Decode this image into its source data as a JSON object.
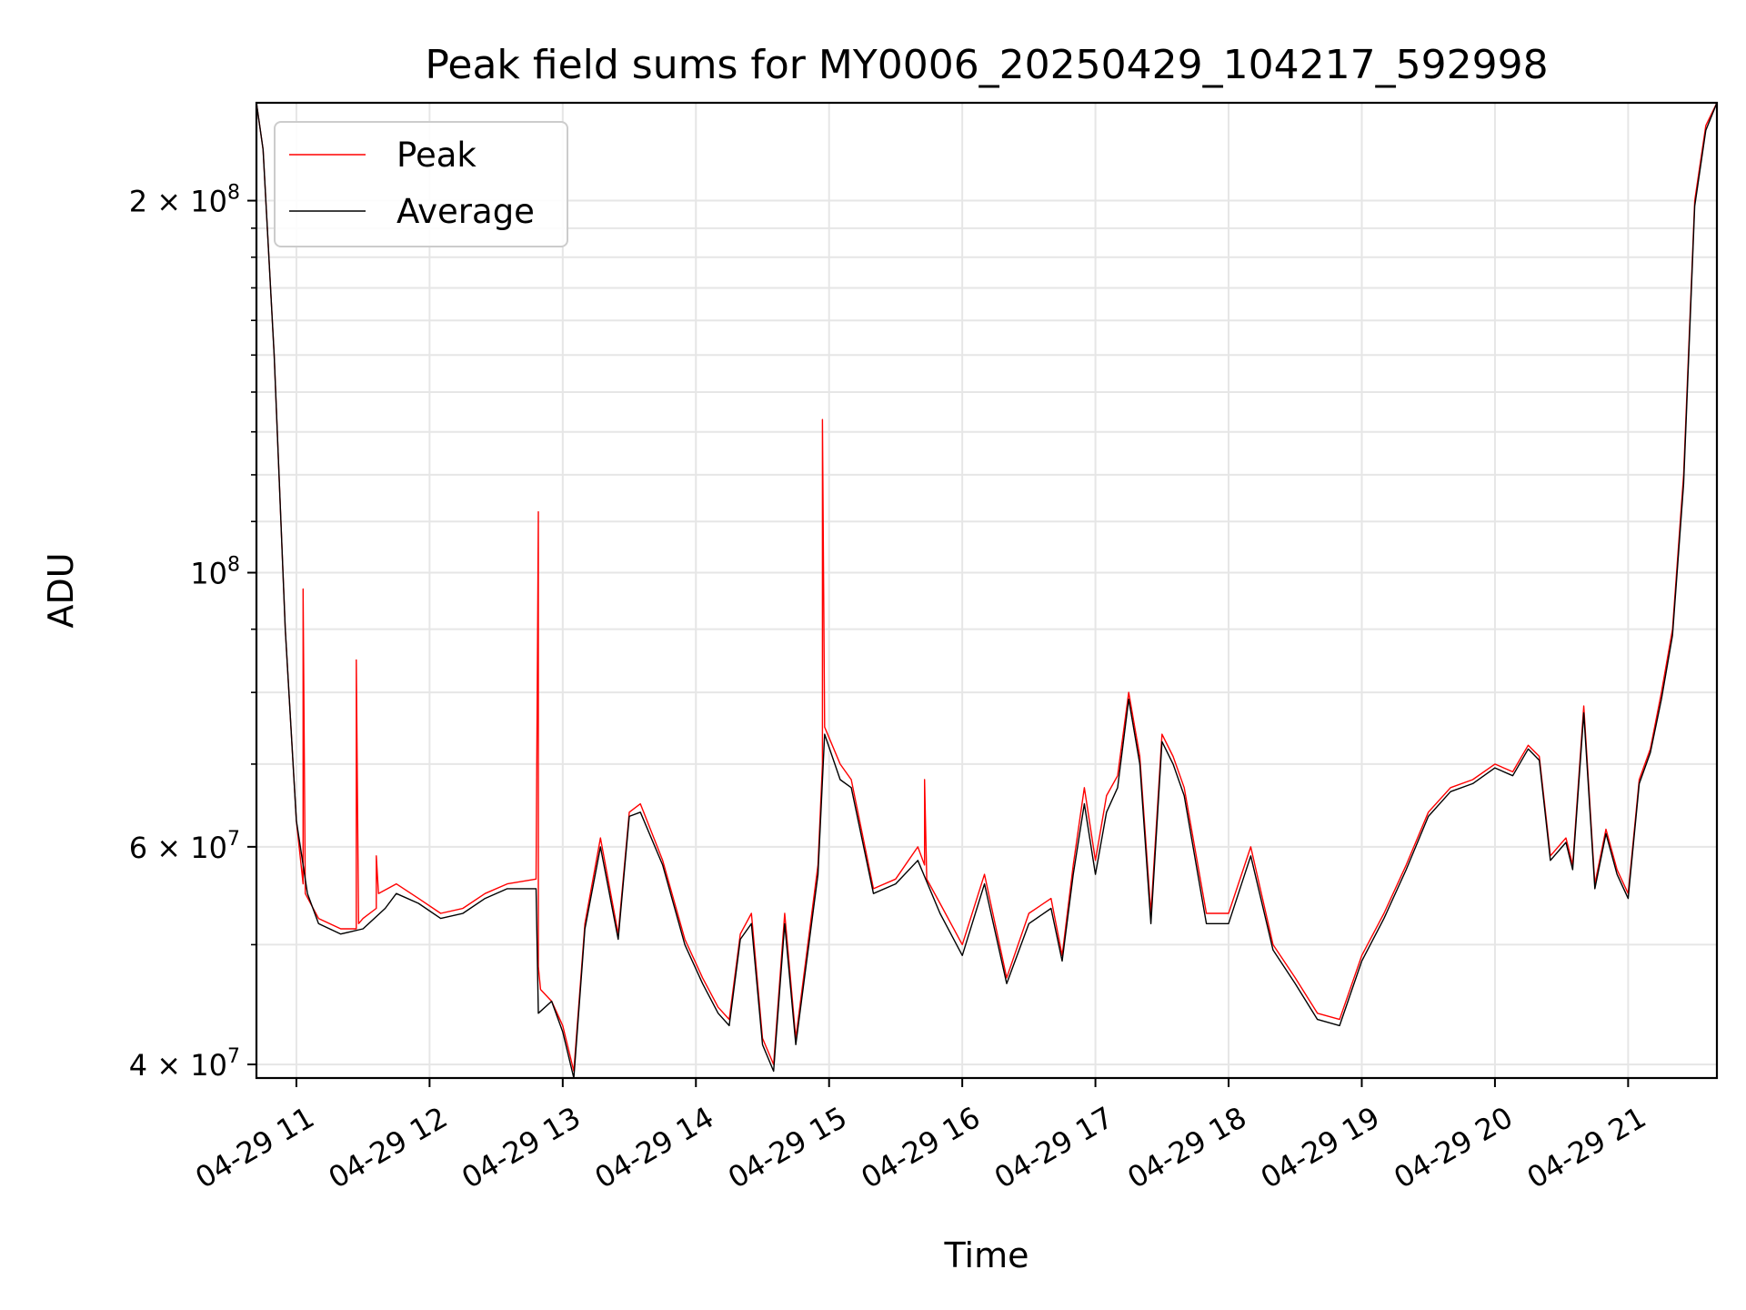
{
  "chart_data": {
    "type": "line",
    "title": "Peak field sums for MY0006_20250429_104217_592998",
    "xlabel": "Time",
    "ylabel": "ADU",
    "x_ticks": [
      "04-29 11",
      "04-29 12",
      "04-29 13",
      "04-29 14",
      "04-29 15",
      "04-29 16",
      "04-29 17",
      "04-29 18",
      "04-29 19",
      "04-29 20",
      "04-29 21"
    ],
    "y_ticks": [
      {
        "value": 40000000,
        "label": "4 × 10^7"
      },
      {
        "value": 60000000,
        "label": "6 × 10^7"
      },
      {
        "value": 100000000,
        "label": "10^8"
      },
      {
        "value": 200000000,
        "label": "2 × 10^8"
      }
    ],
    "xlim": [
      "2025-04-29 10:42",
      "2025-04-29 21:40"
    ],
    "ylim": [
      39000000,
      240000000
    ],
    "yscale": "log",
    "grid": true,
    "legend_position": "top-left",
    "series": [
      {
        "name": "Peak",
        "color": "#ff0000",
        "x": [
          "2025-04-29 10:42",
          "2025-04-29 10:45",
          "2025-04-29 10:50",
          "2025-04-29 10:55",
          "2025-04-29 11:00",
          "2025-04-29 11:03",
          "2025-04-29 11:03",
          "2025-04-29 11:04",
          "2025-04-29 11:10",
          "2025-04-29 11:20",
          "2025-04-29 11:27",
          "2025-04-29 11:27",
          "2025-04-29 11:28",
          "2025-04-29 11:30",
          "2025-04-29 11:36",
          "2025-04-29 11:36",
          "2025-04-29 11:37",
          "2025-04-29 11:45",
          "2025-04-29 11:55",
          "2025-04-29 12:05",
          "2025-04-29 12:15",
          "2025-04-29 12:25",
          "2025-04-29 12:35",
          "2025-04-29 12:48",
          "2025-04-29 12:49",
          "2025-04-29 12:49",
          "2025-04-29 12:50",
          "2025-04-29 12:55",
          "2025-04-29 13:00",
          "2025-04-29 13:05",
          "2025-04-29 13:10",
          "2025-04-29 13:17",
          "2025-04-29 13:25",
          "2025-04-29 13:30",
          "2025-04-29 13:35",
          "2025-04-29 13:45",
          "2025-04-29 13:55",
          "2025-04-29 14:03",
          "2025-04-29 14:10",
          "2025-04-29 14:15",
          "2025-04-29 14:20",
          "2025-04-29 14:25",
          "2025-04-29 14:30",
          "2025-04-29 14:35",
          "2025-04-29 14:40",
          "2025-04-29 14:45",
          "2025-04-29 14:55",
          "2025-04-29 14:57",
          "2025-04-29 14:57",
          "2025-04-29 14:58",
          "2025-04-29 15:05",
          "2025-04-29 15:10",
          "2025-04-29 15:20",
          "2025-04-29 15:30",
          "2025-04-29 15:40",
          "2025-04-29 15:43",
          "2025-04-29 15:43",
          "2025-04-29 15:44",
          "2025-04-29 15:50",
          "2025-04-29 16:00",
          "2025-04-29 16:10",
          "2025-04-29 16:20",
          "2025-04-29 16:30",
          "2025-04-29 16:40",
          "2025-04-29 16:45",
          "2025-04-29 16:50",
          "2025-04-29 16:55",
          "2025-04-29 17:00",
          "2025-04-29 17:05",
          "2025-04-29 17:10",
          "2025-04-29 17:15",
          "2025-04-29 17:20",
          "2025-04-29 17:25",
          "2025-04-29 17:30",
          "2025-04-29 17:35",
          "2025-04-29 17:40",
          "2025-04-29 17:50",
          "2025-04-29 18:00",
          "2025-04-29 18:10",
          "2025-04-29 18:20",
          "2025-04-29 18:30",
          "2025-04-29 18:40",
          "2025-04-29 18:50",
          "2025-04-29 19:00",
          "2025-04-29 19:10",
          "2025-04-29 19:20",
          "2025-04-29 19:30",
          "2025-04-29 19:40",
          "2025-04-29 19:50",
          "2025-04-29 20:00",
          "2025-04-29 20:08",
          "2025-04-29 20:15",
          "2025-04-29 20:20",
          "2025-04-29 20:25",
          "2025-04-29 20:32",
          "2025-04-29 20:35",
          "2025-04-29 20:40",
          "2025-04-29 20:45",
          "2025-04-29 20:50",
          "2025-04-29 20:55",
          "2025-04-29 21:00",
          "2025-04-29 21:05",
          "2025-04-29 21:10",
          "2025-04-29 21:15",
          "2025-04-29 21:20",
          "2025-04-29 21:25",
          "2025-04-29 21:30",
          "2025-04-29 21:35",
          "2025-04-29 21:40"
        ],
        "y": [
          240000000,
          220000000,
          150000000,
          90000000,
          63000000,
          56000000,
          97000000,
          55000000,
          52500000,
          51500000,
          51500000,
          85000000,
          52000000,
          52500000,
          53500000,
          59000000,
          55000000,
          56000000,
          54500000,
          53000000,
          53500000,
          55000000,
          56000000,
          56500000,
          112000000,
          48000000,
          46000000,
          45000000,
          43000000,
          39500000,
          52000000,
          61000000,
          51000000,
          64000000,
          65000000,
          58500000,
          50500000,
          47000000,
          44500000,
          43500000,
          51000000,
          53000000,
          42000000,
          40000000,
          53000000,
          42000000,
          58000000,
          70000000,
          133000000,
          75000000,
          70000000,
          68000000,
          55500000,
          56500000,
          60000000,
          58000000,
          68000000,
          56500000,
          54000000,
          50000000,
          57000000,
          47000000,
          53000000,
          54500000,
          49000000,
          58000000,
          67000000,
          58500000,
          66000000,
          68500000,
          80000000,
          71000000,
          53000000,
          74000000,
          71000000,
          67000000,
          53000000,
          53000000,
          60000000,
          50000000,
          47000000,
          44000000,
          43500000,
          49000000,
          53000000,
          58000000,
          64000000,
          67000000,
          68000000,
          70000000,
          69000000,
          72500000,
          71000000,
          59000000,
          61000000,
          58000000,
          78000000,
          56000000,
          62000000,
          57500000,
          55000000,
          68000000,
          72000000,
          80000000,
          90000000,
          120000000,
          200000000,
          230000000,
          240000000
        ]
      },
      {
        "name": "Average",
        "color": "#000000",
        "x": [
          "2025-04-29 10:42",
          "2025-04-29 10:45",
          "2025-04-29 10:50",
          "2025-04-29 10:55",
          "2025-04-29 11:00",
          "2025-04-29 11:05",
          "2025-04-29 11:10",
          "2025-04-29 11:20",
          "2025-04-29 11:30",
          "2025-04-29 11:40",
          "2025-04-29 11:45",
          "2025-04-29 11:55",
          "2025-04-29 12:05",
          "2025-04-29 12:15",
          "2025-04-29 12:25",
          "2025-04-29 12:35",
          "2025-04-29 12:48",
          "2025-04-29 12:49",
          "2025-04-29 12:55",
          "2025-04-29 13:00",
          "2025-04-29 13:05",
          "2025-04-29 13:10",
          "2025-04-29 13:17",
          "2025-04-29 13:25",
          "2025-04-29 13:30",
          "2025-04-29 13:35",
          "2025-04-29 13:45",
          "2025-04-29 13:55",
          "2025-04-29 14:03",
          "2025-04-29 14:10",
          "2025-04-29 14:15",
          "2025-04-29 14:20",
          "2025-04-29 14:25",
          "2025-04-29 14:30",
          "2025-04-29 14:35",
          "2025-04-29 14:40",
          "2025-04-29 14:45",
          "2025-04-29 14:55",
          "2025-04-29 14:58",
          "2025-04-29 15:05",
          "2025-04-29 15:10",
          "2025-04-29 15:20",
          "2025-04-29 15:30",
          "2025-04-29 15:40",
          "2025-04-29 15:50",
          "2025-04-29 16:00",
          "2025-04-29 16:10",
          "2025-04-29 16:20",
          "2025-04-29 16:30",
          "2025-04-29 16:40",
          "2025-04-29 16:45",
          "2025-04-29 16:50",
          "2025-04-29 16:55",
          "2025-04-29 17:00",
          "2025-04-29 17:05",
          "2025-04-29 17:10",
          "2025-04-29 17:15",
          "2025-04-29 17:20",
          "2025-04-29 17:25",
          "2025-04-29 17:30",
          "2025-04-29 17:35",
          "2025-04-29 17:40",
          "2025-04-29 17:50",
          "2025-04-29 18:00",
          "2025-04-29 18:10",
          "2025-04-29 18:20",
          "2025-04-29 18:30",
          "2025-04-29 18:40",
          "2025-04-29 18:50",
          "2025-04-29 19:00",
          "2025-04-29 19:10",
          "2025-04-29 19:20",
          "2025-04-29 19:30",
          "2025-04-29 19:40",
          "2025-04-29 19:50",
          "2025-04-29 20:00",
          "2025-04-29 20:08",
          "2025-04-29 20:15",
          "2025-04-29 20:20",
          "2025-04-29 20:25",
          "2025-04-29 20:32",
          "2025-04-29 20:35",
          "2025-04-29 20:40",
          "2025-04-29 20:45",
          "2025-04-29 20:50",
          "2025-04-29 20:55",
          "2025-04-29 21:00",
          "2025-04-29 21:05",
          "2025-04-29 21:10",
          "2025-04-29 21:15",
          "2025-04-29 21:20",
          "2025-04-29 21:25",
          "2025-04-29 21:30",
          "2025-04-29 21:35",
          "2025-04-29 21:40"
        ],
        "y": [
          240000000,
          220000000,
          150000000,
          90000000,
          63000000,
          55000000,
          52000000,
          51000000,
          51500000,
          53500000,
          55000000,
          54000000,
          52500000,
          53000000,
          54500000,
          55500000,
          55500000,
          44000000,
          45000000,
          42500000,
          39000000,
          51500000,
          60000000,
          50500000,
          63500000,
          64000000,
          58000000,
          50000000,
          46500000,
          44000000,
          43000000,
          50500000,
          52000000,
          41500000,
          39500000,
          52000000,
          41500000,
          57000000,
          74000000,
          68000000,
          67000000,
          55000000,
          56000000,
          58500000,
          53000000,
          49000000,
          56000000,
          46500000,
          52000000,
          53500000,
          48500000,
          57000000,
          65000000,
          57000000,
          64000000,
          67000000,
          79000000,
          70000000,
          52000000,
          73000000,
          70000000,
          66000000,
          52000000,
          52000000,
          59000000,
          49500000,
          46500000,
          43500000,
          43000000,
          48500000,
          52500000,
          57500000,
          63500000,
          66500000,
          67500000,
          69500000,
          68500000,
          72000000,
          70500000,
          58500000,
          60500000,
          57500000,
          77000000,
          55500000,
          61500000,
          57000000,
          54500000,
          67500000,
          71500000,
          79000000,
          89000000,
          118000000,
          198000000,
          228000000,
          240000000
        ]
      }
    ]
  }
}
